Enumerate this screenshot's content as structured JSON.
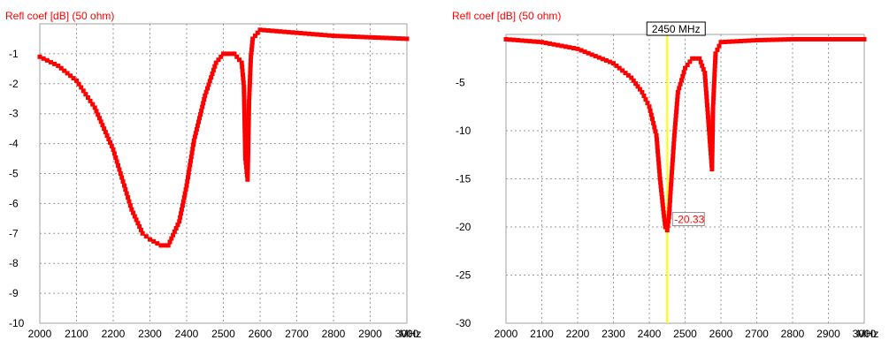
{
  "chart_data": [
    {
      "type": "line",
      "title": "Refl coef [dB] (50 ohm)",
      "xlabel": "MHz",
      "xlim": [
        2000,
        3000
      ],
      "ylim": [
        -10,
        0
      ],
      "x_ticks": [
        "2000",
        "2100",
        "2200",
        "2300",
        "2400",
        "2500",
        "2600",
        "2700",
        "2800",
        "2900",
        "3000"
      ],
      "y_ticks": [
        "-1",
        "-2",
        "-3",
        "-4",
        "-5",
        "-6",
        "-7",
        "-8",
        "-9",
        "-10"
      ],
      "y_tick_values": [
        -1,
        -2,
        -3,
        -4,
        -5,
        -6,
        -7,
        -8,
        -9,
        -10
      ],
      "grid": true,
      "color": "#ff0000",
      "series": [
        {
          "x": [
            2000,
            2050,
            2100,
            2150,
            2200,
            2230,
            2250,
            2280,
            2300,
            2330,
            2350,
            2380,
            2400,
            2420,
            2450,
            2480,
            2500,
            2530,
            2550,
            2556,
            2560,
            2566,
            2570,
            2575,
            2580,
            2600,
            2700,
            2800,
            2900,
            3000
          ],
          "y": [
            -1.1,
            -1.4,
            -1.9,
            -2.8,
            -4.2,
            -5.4,
            -6.2,
            -7.0,
            -7.2,
            -7.4,
            -7.4,
            -6.6,
            -5.4,
            -3.9,
            -2.4,
            -1.3,
            -1.0,
            -1.0,
            -1.3,
            -2.1,
            -4.5,
            -5.2,
            -2.6,
            -1.1,
            -0.5,
            -0.2,
            -0.3,
            -0.4,
            -0.45,
            -0.5
          ]
        }
      ]
    },
    {
      "type": "line",
      "title": "Refl coef [dB] (50 ohm)",
      "xlabel": "MHz",
      "xlim": [
        2000,
        3000
      ],
      "ylim": [
        -30,
        0
      ],
      "x_ticks": [
        "2000",
        "2100",
        "2200",
        "2300",
        "2400",
        "2500",
        "2600",
        "2700",
        "2800",
        "2900",
        "3000"
      ],
      "y_ticks": [
        "-5",
        "-10",
        "-15",
        "-20",
        "-25",
        "-30"
      ],
      "y_tick_values": [
        -5,
        -10,
        -15,
        -20,
        -25,
        -30
      ],
      "grid": true,
      "color": "#ff0000",
      "marker": {
        "x": 2450,
        "label": "2450 MHz",
        "color": "#ffff00"
      },
      "min_annotation": {
        "x": 2450,
        "y": -20.33,
        "label": "-20.33"
      },
      "series": [
        {
          "x": [
            2000,
            2100,
            2200,
            2300,
            2350,
            2380,
            2400,
            2420,
            2430,
            2440,
            2445,
            2450,
            2455,
            2460,
            2470,
            2480,
            2500,
            2520,
            2540,
            2555,
            2565,
            2570,
            2575,
            2578,
            2585,
            2600,
            2700,
            2800,
            2900,
            3000
          ],
          "y": [
            -0.5,
            -0.8,
            -1.5,
            -3.0,
            -4.5,
            -6.0,
            -7.5,
            -10.5,
            -15.0,
            -18.5,
            -20.0,
            -20.33,
            -19.0,
            -16.0,
            -10.5,
            -6.0,
            -3.5,
            -2.5,
            -2.5,
            -4.0,
            -9.0,
            -11.5,
            -14.0,
            -7.5,
            -2.0,
            -0.8,
            -0.6,
            -0.5,
            -0.5,
            -0.5
          ]
        }
      ]
    }
  ]
}
